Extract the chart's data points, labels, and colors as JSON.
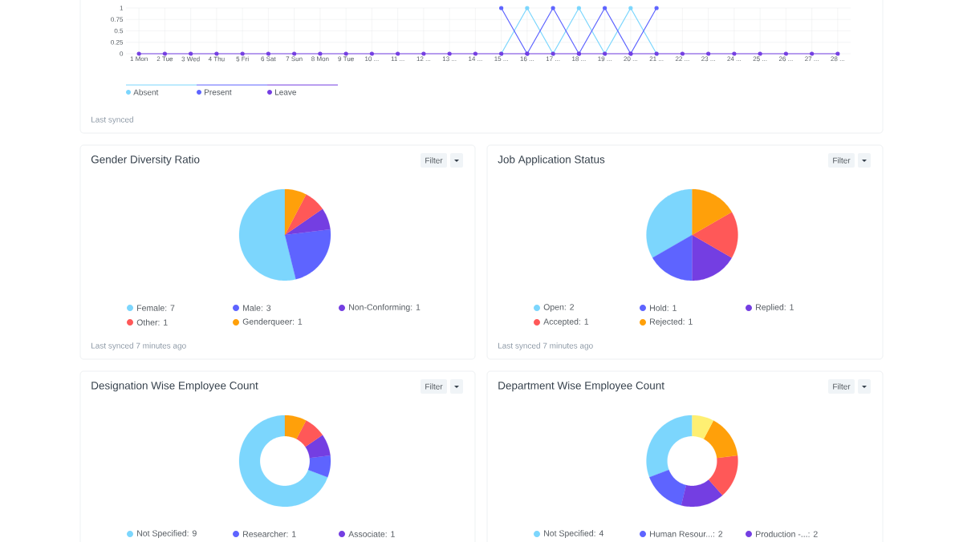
{
  "chart_data": [
    {
      "type": "line",
      "categories": [
        "1 Mon",
        "2 Tue",
        "3 Wed",
        "4 Thu",
        "5 Fri",
        "6 Sat",
        "7 Sun",
        "8 Mon",
        "9 Tue",
        "10 ...",
        "11 ...",
        "12 ...",
        "13 ...",
        "14 ...",
        "15 ...",
        "16 ...",
        "17 ...",
        "18 ...",
        "19 ...",
        "20 ...",
        "21 ...",
        "22 ...",
        "23 ...",
        "24 ...",
        "25 ...",
        "26 ...",
        "27 ...",
        "28 ..."
      ],
      "series": [
        {
          "name": "Absent",
          "color": "#7cd6fd",
          "values": [
            null,
            null,
            null,
            null,
            null,
            null,
            null,
            null,
            null,
            null,
            null,
            null,
            null,
            null,
            0,
            1,
            0,
            1,
            0,
            1,
            0,
            null,
            null,
            null,
            null,
            null,
            null,
            null
          ]
        },
        {
          "name": "Present",
          "color": "#5e64ff",
          "values": [
            null,
            null,
            null,
            null,
            null,
            null,
            null,
            null,
            null,
            null,
            null,
            null,
            null,
            null,
            1,
            0,
            1,
            0,
            1,
            0,
            1,
            null,
            null,
            null,
            null,
            null,
            null,
            null
          ]
        },
        {
          "name": "Leave",
          "color": "#743ee2",
          "values": [
            0,
            0,
            0,
            0,
            0,
            0,
            0,
            0,
            0,
            0,
            0,
            0,
            0,
            0,
            0,
            0,
            0,
            0,
            0,
            0,
            0,
            0,
            0,
            0,
            0,
            0,
            0,
            0
          ]
        }
      ],
      "ylim": [
        0,
        1
      ],
      "yticks": [
        0,
        0.25,
        0.5,
        0.75,
        1
      ],
      "grid": true,
      "legend": "bottom",
      "marker": "circle",
      "annotations": [
        "Last synced"
      ]
    },
    {
      "type": "pie",
      "title": "Gender Diversity Ratio",
      "categories": [
        "Female: 7",
        "Male: 3",
        "Non-Conforming: 1",
        "Other: 1",
        "Genderqueer: 1"
      ],
      "values": [
        7,
        3,
        1,
        1,
        1
      ],
      "colors": [
        "#7cd6fd",
        "#5e64ff",
        "#743ee2",
        "#ff5858",
        "#ffa00a"
      ],
      "legend": "bottom",
      "annotations": [
        "Filter",
        "Last synced 7 minutes ago"
      ]
    },
    {
      "type": "pie",
      "title": "Job Application Status",
      "categories": [
        "Open: 2",
        "Hold: 1",
        "Replied: 1",
        "Accepted: 1",
        "Rejected: 1"
      ],
      "values": [
        2,
        1,
        1,
        1,
        1
      ],
      "colors": [
        "#7cd6fd",
        "#5e64ff",
        "#743ee2",
        "#ff5858",
        "#ffa00a"
      ],
      "legend": "bottom",
      "annotations": [
        "Filter",
        "Last synced 7 minutes ago"
      ]
    },
    {
      "type": "donut",
      "title": "Designation Wise Employee Count",
      "categories": [
        "Not Specified: 9",
        "Researcher: 1",
        "Associate: 1",
        null,
        null
      ],
      "values": [
        9,
        1,
        1,
        1,
        1
      ],
      "colors": [
        "#7cd6fd",
        "#5e64ff",
        "#743ee2",
        "#ff5858",
        "#ffa00a"
      ],
      "legend": "bottom",
      "annotations": [
        "Filter"
      ]
    },
    {
      "type": "donut",
      "title": "Department Wise Employee Count",
      "categories": [
        "Not Specified: 4",
        "Human Resour...: 2",
        "Production -...: 2",
        null,
        null,
        null
      ],
      "values": [
        4,
        2,
        2,
        2,
        2,
        1
      ],
      "colors": [
        "#7cd6fd",
        "#5e64ff",
        "#743ee2",
        "#ff5858",
        "#ffa00a",
        "#feef72"
      ],
      "legend": "bottom",
      "annotations": [
        "Filter"
      ]
    }
  ]
}
